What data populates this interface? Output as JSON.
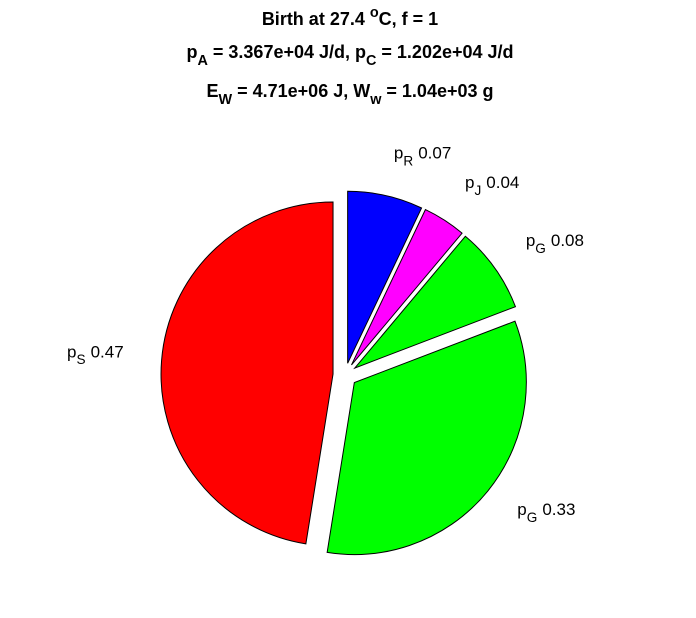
{
  "chart_data": {
    "type": "pie",
    "title": [
      [
        "Birth at 27.4 ",
        {
          "sup": "o"
        },
        "C, f = 1"
      ],
      [
        "p",
        {
          "sub": "A"
        },
        " = 3.367e+04 J/d, p",
        {
          "sub": "C"
        },
        " = 1.202e+04 J/d"
      ],
      [
        "E",
        {
          "sub": "W"
        },
        " = 4.71e+06 J, W",
        {
          "sub": "w"
        },
        " = 1.04e+03 g"
      ]
    ],
    "categories": [
      [
        "p",
        {
          "sub": "R"
        }
      ],
      [
        "p",
        {
          "sub": "J"
        }
      ],
      [
        "p",
        {
          "sub": "G"
        }
      ],
      [
        "p",
        {
          "sub": "G"
        }
      ],
      [
        "p",
        {
          "sub": "S"
        }
      ]
    ],
    "values": [
      0.07,
      0.04,
      0.08,
      0.33,
      0.47
    ],
    "colors": [
      "#0000ff",
      "#ff00ff",
      "#00ff00",
      "#00ff00",
      "#ff0000"
    ],
    "explode": true
  }
}
